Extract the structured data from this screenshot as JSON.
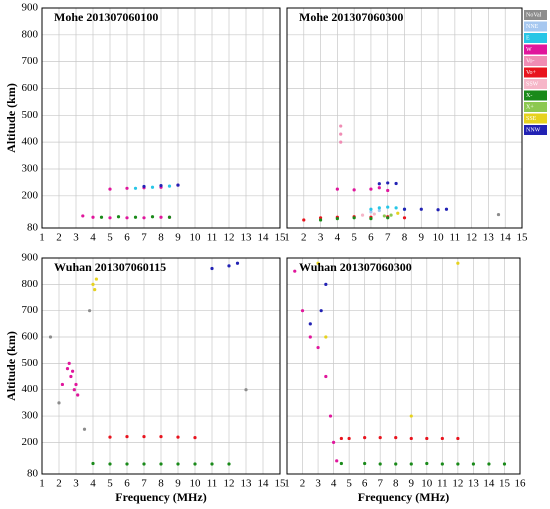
{
  "chart_data": [
    {
      "type": "scatter",
      "title": "Mohe 201307060100",
      "ylabel": "Altitude (km)",
      "xlim": [
        1,
        15
      ],
      "ylim": [
        80,
        900
      ],
      "xticks": [
        1,
        2,
        3,
        4,
        5,
        6,
        7,
        8,
        9,
        10,
        11,
        12,
        13,
        14,
        15
      ],
      "yticks": [
        80,
        200,
        300,
        400,
        500,
        600,
        700,
        800,
        900
      ],
      "grid": true,
      "series": [
        {
          "color": "#e0169c",
          "x": [
            3.4,
            4.0,
            5.0,
            6.0,
            7.0,
            8.0,
            8.5,
            5.0,
            6.0,
            7.0,
            8.0,
            9.0
          ],
          "y": [
            125,
            120,
            118,
            118,
            118,
            120,
            120,
            225,
            228,
            230,
            232,
            240
          ]
        },
        {
          "color": "#1a8a1a",
          "x": [
            4.5,
            5.5,
            6.5,
            7.5,
            8.5
          ],
          "y": [
            120,
            122,
            120,
            122,
            120
          ]
        },
        {
          "color": "#27c6e6",
          "x": [
            6.5,
            7.5,
            8.5
          ],
          "y": [
            228,
            232,
            236
          ]
        },
        {
          "color": "#2222b4",
          "x": [
            7.0,
            8.0,
            9.0
          ],
          "y": [
            235,
            238,
            240
          ]
        }
      ]
    },
    {
      "type": "scatter",
      "title": "Mohe 201307060300",
      "xlim": [
        1,
        15
      ],
      "ylim": [
        80,
        900
      ],
      "xticks": [
        1,
        2,
        3,
        4,
        5,
        6,
        7,
        8,
        9,
        10,
        11,
        12,
        13,
        14,
        15
      ],
      "yticks": [
        80,
        200,
        300,
        400,
        500,
        600,
        700,
        800,
        900
      ],
      "grid": true,
      "legend": "right",
      "series": [
        {
          "name": "NoVal",
          "color": "#8c8c8c",
          "x": [
            13.6
          ],
          "y": [
            130
          ]
        },
        {
          "name": "NNE",
          "color": "#a6c8f0",
          "x": [
            6.0,
            6.5
          ],
          "y": [
            140,
            145
          ]
        },
        {
          "name": "E",
          "color": "#27c6e6",
          "x": [
            6.0,
            6.5,
            7.0,
            7.5,
            8.0
          ],
          "y": [
            150,
            155,
            158,
            155,
            150
          ]
        },
        {
          "name": "W",
          "color": "#e0169c",
          "x": [
            4.0,
            5.0,
            6.0,
            6.5,
            7.0
          ],
          "y": [
            225,
            222,
            225,
            230,
            220
          ]
        },
        {
          "name": "Vo-",
          "color": "#f08cb4",
          "x": [
            4.2,
            4.2,
            4.2
          ],
          "y": [
            400,
            430,
            460
          ]
        },
        {
          "name": "Vo+",
          "color": "#e8141e",
          "x": [
            2.0,
            3.0,
            4.0,
            5.0,
            6.0,
            7.0,
            8.0
          ],
          "y": [
            110,
            118,
            120,
            122,
            120,
            122,
            118
          ]
        },
        {
          "name": "SSW",
          "color": "#f6b6c8",
          "x": [
            5.5,
            6.2
          ],
          "y": [
            128,
            132
          ]
        },
        {
          "name": "X-",
          "color": "#1a8a1a",
          "x": [
            3.0,
            4.0,
            5.0,
            6.0,
            7.0
          ],
          "y": [
            110,
            115,
            118,
            115,
            118
          ]
        },
        {
          "name": "X+",
          "color": "#8cc850",
          "x": [
            6.8,
            7.2
          ],
          "y": [
            125,
            128
          ]
        },
        {
          "name": "SSE",
          "color": "#e6d21e",
          "x": [
            7.6
          ],
          "y": [
            135
          ]
        },
        {
          "name": "NNW",
          "color": "#2222b4",
          "x": [
            6.5,
            7.0,
            7.5,
            8.0,
            9.0,
            10.0,
            10.5
          ],
          "y": [
            245,
            248,
            246,
            150,
            150,
            148,
            150
          ]
        }
      ]
    },
    {
      "type": "scatter",
      "title": "Wuhan 201307060115",
      "ylabel": "Altitude (km)",
      "xlabel": "Frequency (MHz)",
      "xlim": [
        1,
        15
      ],
      "ylim": [
        80,
        900
      ],
      "xticks": [
        1,
        2,
        3,
        4,
        5,
        6,
        7,
        8,
        9,
        10,
        11,
        12,
        13,
        14,
        15
      ],
      "yticks": [
        80,
        200,
        300,
        400,
        500,
        600,
        700,
        800,
        900
      ],
      "grid": true,
      "series": [
        {
          "color": "#e0169c",
          "x": [
            2.2,
            2.5,
            2.6,
            2.7,
            2.8,
            2.9,
            3.0,
            3.1
          ],
          "y": [
            420,
            480,
            500,
            450,
            470,
            400,
            420,
            380
          ]
        },
        {
          "color": "#1a8a1a",
          "x": [
            4,
            5,
            6,
            7,
            8,
            9,
            10,
            11,
            12
          ],
          "y": [
            120,
            118,
            118,
            118,
            118,
            118,
            118,
            118,
            118
          ]
        },
        {
          "color": "#e8141e",
          "x": [
            5,
            6,
            7,
            8,
            9,
            10
          ],
          "y": [
            220,
            222,
            222,
            222,
            220,
            218
          ]
        },
        {
          "color": "#2222b4",
          "x": [
            11,
            12,
            12.5
          ],
          "y": [
            860,
            870,
            880
          ]
        },
        {
          "color": "#e6d21e",
          "x": [
            4.0,
            4.1,
            4.2
          ],
          "y": [
            800,
            780,
            820
          ]
        },
        {
          "color": "#8c8c8c",
          "x": [
            1.5,
            2.0,
            3.5,
            3.8,
            13.0
          ],
          "y": [
            600,
            350,
            250,
            700,
            400
          ]
        }
      ]
    },
    {
      "type": "scatter",
      "title": "Wuhan 201307060300",
      "xlabel": "Frequency (MHz)",
      "xlim": [
        1,
        16
      ],
      "ylim": [
        80,
        900
      ],
      "xticks": [
        1,
        2,
        3,
        4,
        5,
        6,
        7,
        8,
        9,
        10,
        11,
        12,
        13,
        14,
        15,
        16
      ],
      "yticks": [
        80,
        200,
        300,
        400,
        500,
        600,
        700,
        800,
        900
      ],
      "grid": true,
      "series": [
        {
          "color": "#e0169c",
          "x": [
            1.5,
            2.0,
            2.5,
            3.0,
            3.5,
            3.8,
            4.0,
            4.2
          ],
          "y": [
            850,
            700,
            600,
            560,
            450,
            300,
            200,
            130
          ]
        },
        {
          "color": "#1a8a1a",
          "x": [
            4.5,
            6,
            7,
            8,
            9,
            10,
            11,
            12,
            13,
            14,
            15
          ],
          "y": [
            120,
            120,
            118,
            118,
            118,
            120,
            118,
            118,
            118,
            118,
            118
          ]
        },
        {
          "color": "#e8141e",
          "x": [
            4.5,
            5,
            6,
            7,
            8,
            9,
            10,
            11,
            12
          ],
          "y": [
            215,
            215,
            218,
            218,
            218,
            215,
            215,
            215,
            215
          ]
        },
        {
          "color": "#2222b4",
          "x": [
            2.5,
            3.2,
            3.5
          ],
          "y": [
            650,
            700,
            800
          ]
        },
        {
          "color": "#e6d21e",
          "x": [
            3.0,
            3.5,
            9.0,
            12.0
          ],
          "y": [
            880,
            600,
            300,
            880
          ]
        }
      ]
    }
  ]
}
